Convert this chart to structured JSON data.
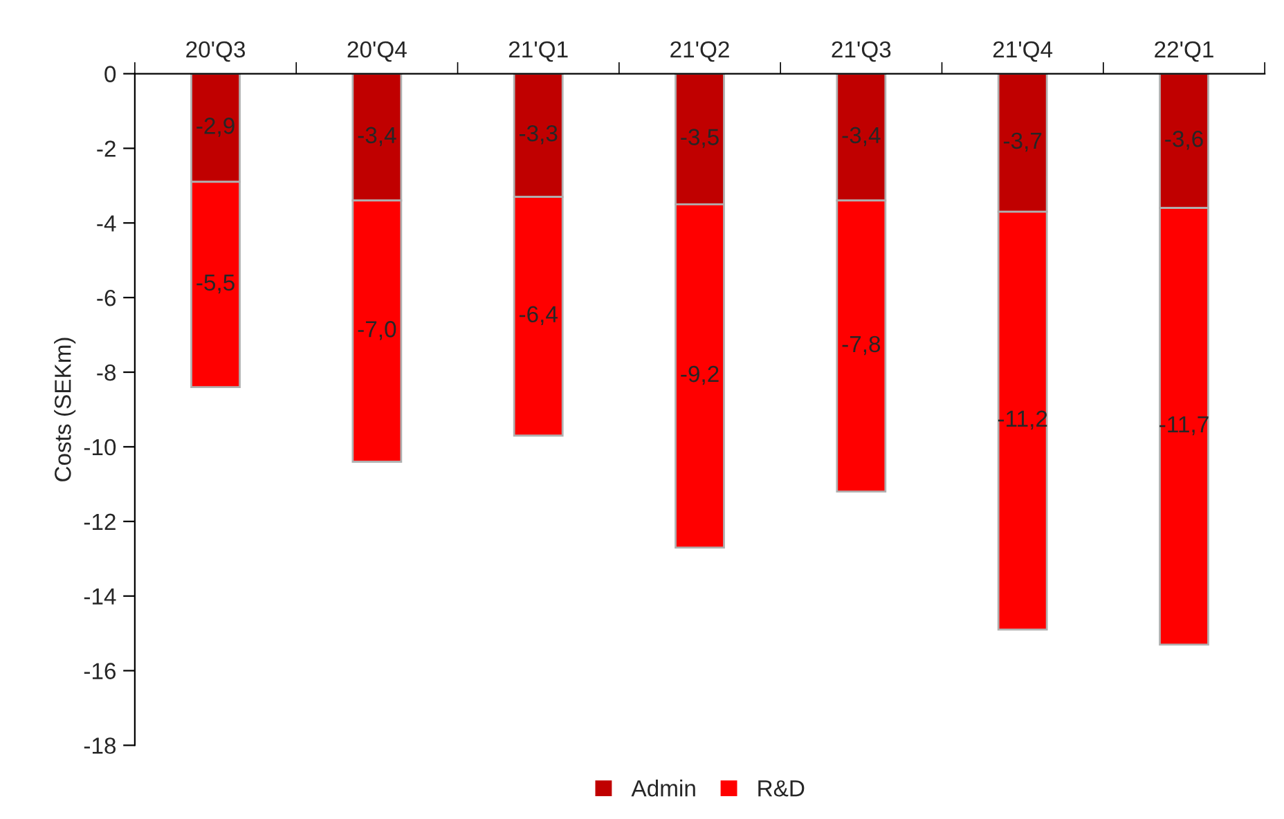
{
  "chart_data": {
    "type": "bar",
    "stacked": true,
    "ylabel": "Costs (SEKm)",
    "categories": [
      "20'Q3",
      "20'Q4",
      "21'Q1",
      "21'Q2",
      "21'Q3",
      "21'Q4",
      "22'Q1"
    ],
    "series": [
      {
        "name": "Admin",
        "color": "#c00000",
        "values": [
          -2.9,
          -3.4,
          -3.3,
          -3.5,
          -3.4,
          -3.7,
          -3.6
        ],
        "value_labels": [
          "-2,9",
          "-3,4",
          "-3,3",
          "-3,5",
          "-3,4",
          "-3,7",
          "-3,6"
        ]
      },
      {
        "name": "R&D",
        "color": "#ff0000",
        "values": [
          -5.5,
          -7.0,
          -6.4,
          -9.2,
          -7.8,
          -11.2,
          -11.7
        ],
        "value_labels": [
          "-5,5",
          "-7,0",
          "-6,4",
          "-9,2",
          "-7,8",
          "-11,2",
          "-11,7"
        ]
      }
    ],
    "ylim": [
      -18,
      0
    ],
    "yticks": [
      0,
      -2,
      -4,
      -6,
      -8,
      -10,
      -12,
      -14,
      -16,
      -18
    ],
    "grid": false,
    "legend": "bottom"
  }
}
